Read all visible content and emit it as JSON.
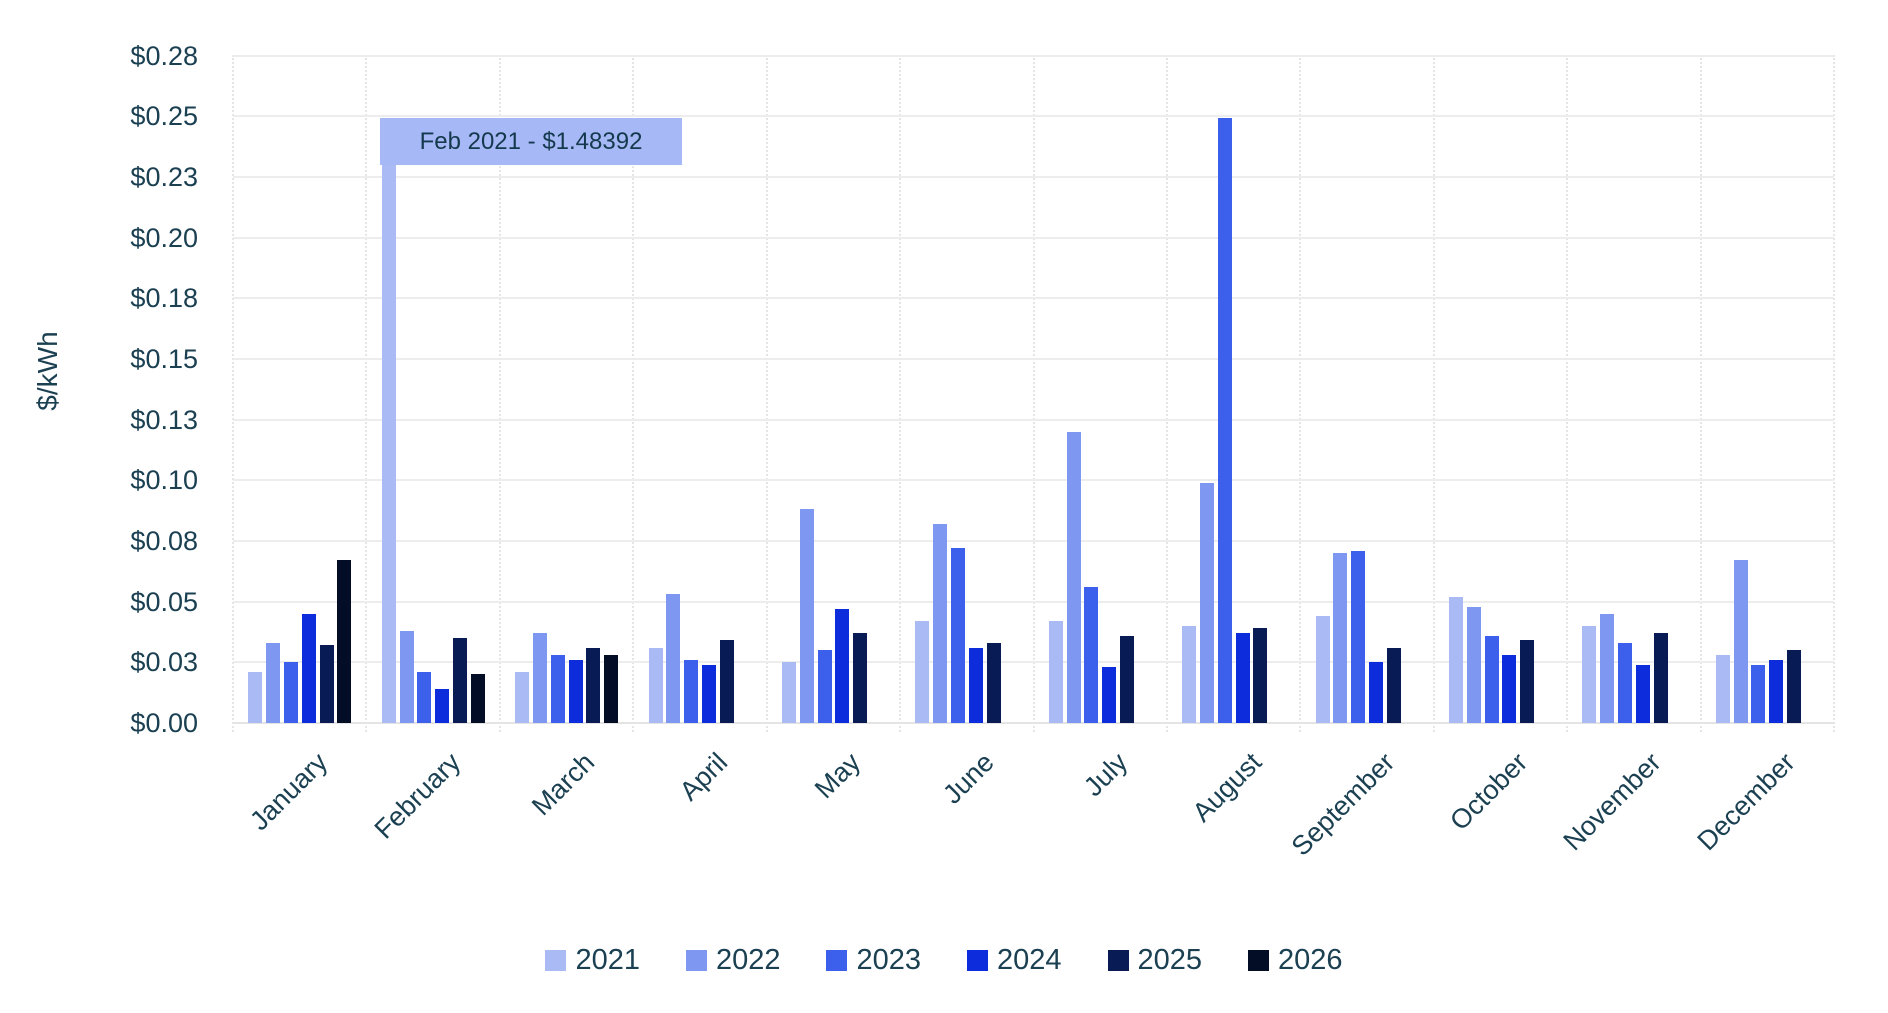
{
  "chart": {
    "y_axis_title": "$/kWh",
    "y_ticks": [
      {
        "label": "$0.28",
        "value": 0.275
      },
      {
        "label": "$0.25",
        "value": 0.25
      },
      {
        "label": "$0.23",
        "value": 0.225
      },
      {
        "label": "$0.20",
        "value": 0.2
      },
      {
        "label": "$0.18",
        "value": 0.175
      },
      {
        "label": "$0.15",
        "value": 0.15
      },
      {
        "label": "$0.13",
        "value": 0.125
      },
      {
        "label": "$0.10",
        "value": 0.1
      },
      {
        "label": "$0.08",
        "value": 0.075
      },
      {
        "label": "$0.05",
        "value": 0.05
      },
      {
        "label": "$0.03",
        "value": 0.025
      },
      {
        "label": "$0.00",
        "value": 0
      }
    ],
    "text_color": "#1b4052"
  },
  "chart_data": {
    "type": "bar",
    "title": "",
    "xlabel": "",
    "ylabel": "$/kWh",
    "ylim": [
      0,
      0.275
    ],
    "ytick_step": 0.025,
    "grid": "horizontal-solid, vertical-dotted category separators",
    "legend_position": "bottom-center",
    "clip_display_at": 0.2493,
    "categories": [
      "January",
      "February",
      "March",
      "April",
      "May",
      "June",
      "July",
      "August",
      "September",
      "October",
      "November",
      "December"
    ],
    "series": [
      {
        "name": "2021",
        "color": "#a9baf5",
        "values": [
          0.021,
          1.48392,
          0.021,
          0.031,
          0.025,
          0.042,
          0.042,
          0.04,
          0.044,
          0.052,
          0.04,
          0.028
        ]
      },
      {
        "name": "2022",
        "color": "#7e97f0",
        "values": [
          0.033,
          0.038,
          0.037,
          0.053,
          0.088,
          0.082,
          0.12,
          0.099,
          0.07,
          0.048,
          0.045,
          0.067
        ]
      },
      {
        "name": "2023",
        "color": "#3d60ec",
        "values": [
          0.025,
          0.021,
          0.028,
          0.026,
          0.03,
          0.072,
          0.056,
          0.26,
          0.071,
          0.036,
          0.033,
          0.024
        ]
      },
      {
        "name": "2024",
        "color": "#0d2cdb",
        "values": [
          0.045,
          0.014,
          0.026,
          0.024,
          0.047,
          0.031,
          0.023,
          0.037,
          0.025,
          0.028,
          0.024,
          0.026
        ]
      },
      {
        "name": "2025",
        "color": "#081b55",
        "values": [
          0.032,
          0.035,
          0.031,
          0.034,
          0.037,
          0.033,
          0.036,
          0.039,
          0.031,
          0.034,
          0.037,
          0.03
        ]
      },
      {
        "name": "2026",
        "color": "#040d26",
        "values": [
          0.067,
          0.02,
          0.028,
          null,
          null,
          null,
          null,
          null,
          null,
          null,
          null,
          null
        ]
      }
    ],
    "annotation": {
      "label": "Feb 2021 - $1.48392",
      "target_series": "2021",
      "target_category": "February",
      "value": 1.48392,
      "box_color": "#a6b8f6"
    }
  }
}
